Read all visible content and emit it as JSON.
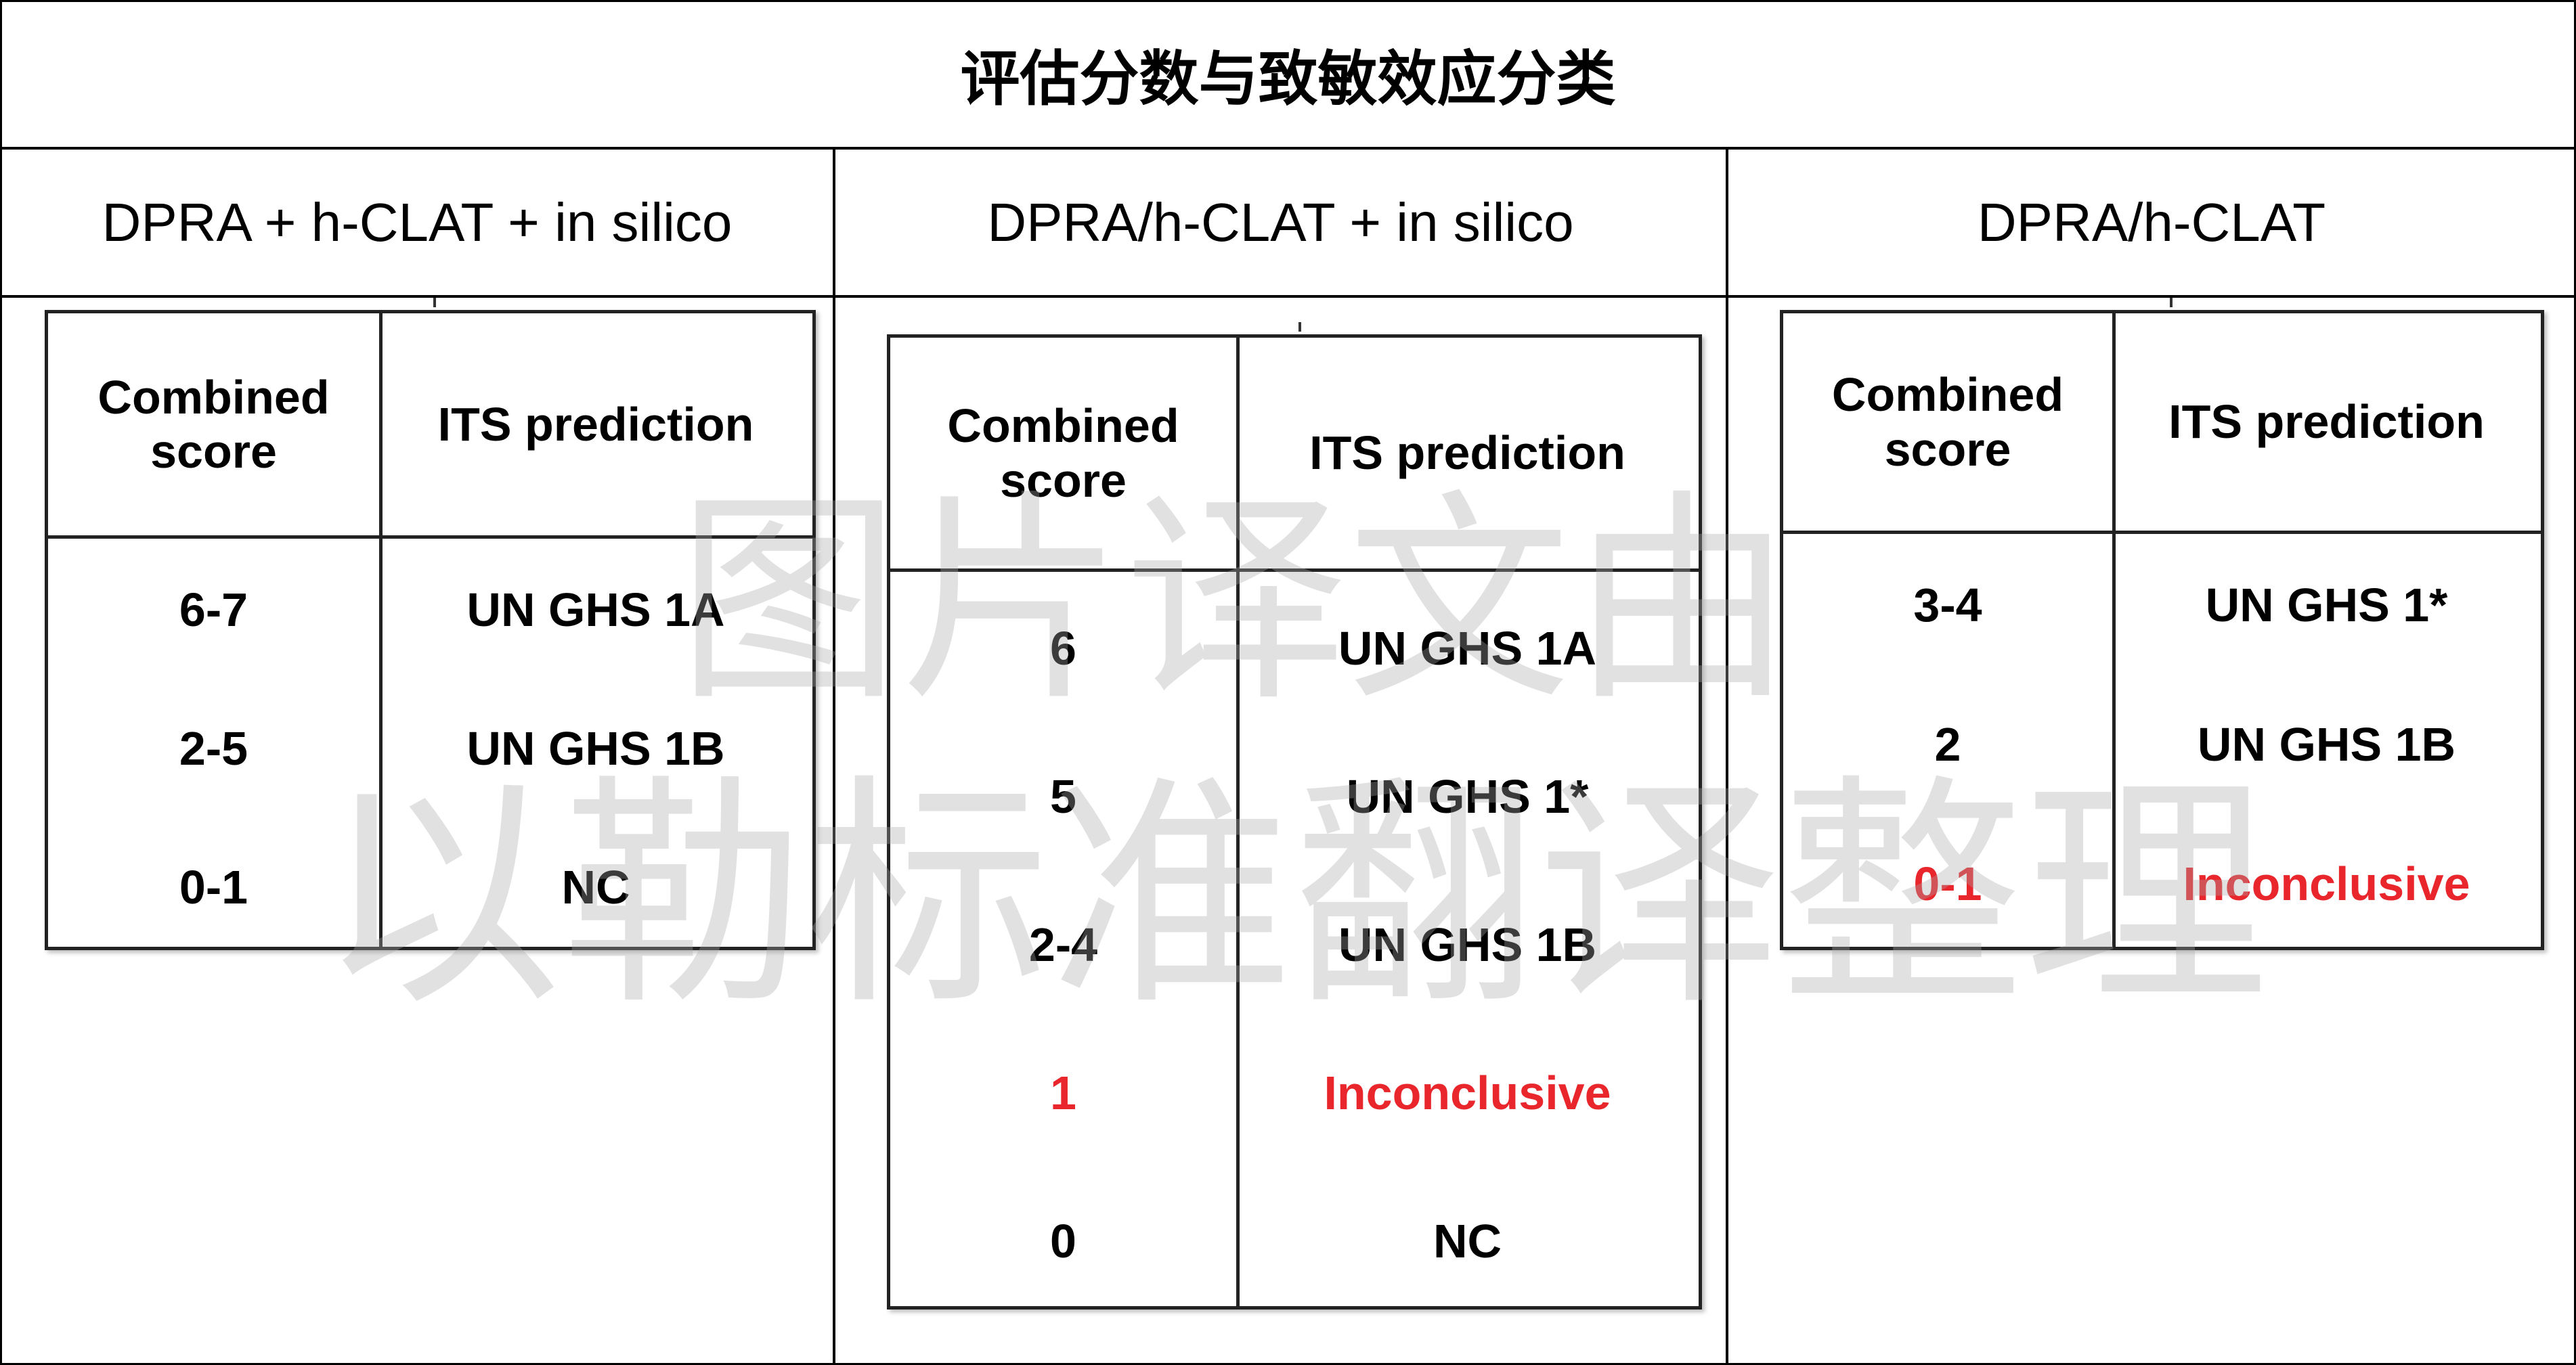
{
  "title": "评估分数与致敏效应分类",
  "columns": [
    {
      "heading": "DPRA + h-CLAT + in silico",
      "table": {
        "headers": [
          "Combined score",
          "ITS prediction"
        ],
        "rows": [
          {
            "score": "6-7",
            "prediction": "UN GHS 1A",
            "highlight": false
          },
          {
            "score": "2-5",
            "prediction": "UN GHS 1B",
            "highlight": false
          },
          {
            "score": "0-1",
            "prediction": "NC",
            "highlight": false
          }
        ]
      }
    },
    {
      "heading": "DPRA/h-CLAT + in silico",
      "table": {
        "headers": [
          "Combined score",
          "ITS prediction"
        ],
        "rows": [
          {
            "score": "6",
            "prediction": "UN GHS 1A",
            "highlight": false
          },
          {
            "score": "5",
            "prediction": "UN GHS 1*",
            "highlight": false
          },
          {
            "score": "2-4",
            "prediction": "UN GHS 1B",
            "highlight": false
          },
          {
            "score": "1",
            "prediction": "Inconclusive",
            "highlight": true
          },
          {
            "score": "0",
            "prediction": "NC",
            "highlight": false
          }
        ]
      }
    },
    {
      "heading": "DPRA/h-CLAT",
      "table": {
        "headers": [
          "Combined score",
          "ITS prediction"
        ],
        "rows": [
          {
            "score": "3-4",
            "prediction": "UN GHS 1*",
            "highlight": false
          },
          {
            "score": "2",
            "prediction": "UN GHS 1B",
            "highlight": false
          },
          {
            "score": "0-1",
            "prediction": "Inconclusive",
            "highlight": true
          }
        ]
      }
    }
  ],
  "watermark": {
    "line1": "图片译文由",
    "line2": "以勒标准翻译整理"
  },
  "colors": {
    "highlight": "#e8262b",
    "border": "#000000"
  }
}
